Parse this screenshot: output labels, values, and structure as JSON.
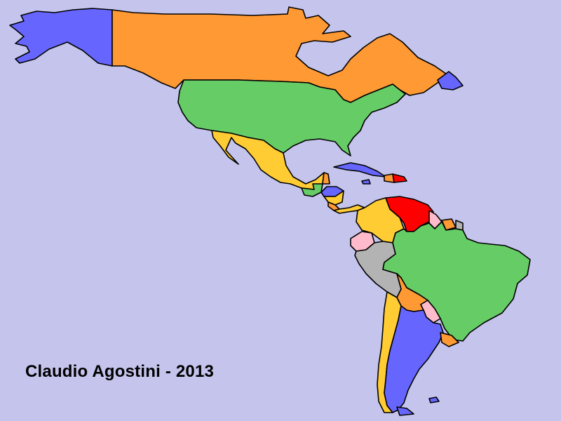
{
  "credit_text": "Claudio Agostini - 2013",
  "colors": {
    "ocean": "#c4c4ec",
    "blue": "#6666ff",
    "orange": "#ff9933",
    "green": "#66cc66",
    "yellow": "#ffcc33",
    "red": "#ff0000",
    "pink": "#ffbbcc",
    "gray": "#b3b3b3",
    "border": "#000000"
  },
  "regions": [
    {
      "name": "alaska",
      "color": "blue"
    },
    {
      "name": "canada",
      "color": "orange"
    },
    {
      "name": "greenland-fragment",
      "color": "blue"
    },
    {
      "name": "usa",
      "color": "green"
    },
    {
      "name": "mexico",
      "color": "yellow"
    },
    {
      "name": "guatemala",
      "color": "green"
    },
    {
      "name": "belize",
      "color": "orange"
    },
    {
      "name": "honduras",
      "color": "blue"
    },
    {
      "name": "nicaragua",
      "color": "yellow"
    },
    {
      "name": "costa-rica",
      "color": "orange"
    },
    {
      "name": "panama",
      "color": "yellow"
    },
    {
      "name": "cuba",
      "color": "blue"
    },
    {
      "name": "haiti",
      "color": "orange"
    },
    {
      "name": "dominican-republic",
      "color": "red"
    },
    {
      "name": "jamaica",
      "color": "blue"
    },
    {
      "name": "colombia",
      "color": "yellow"
    },
    {
      "name": "venezuela",
      "color": "red"
    },
    {
      "name": "guyana",
      "color": "pink"
    },
    {
      "name": "suriname",
      "color": "orange"
    },
    {
      "name": "french-guiana",
      "color": "gray"
    },
    {
      "name": "ecuador",
      "color": "pink"
    },
    {
      "name": "peru",
      "color": "gray"
    },
    {
      "name": "brazil",
      "color": "green"
    },
    {
      "name": "bolivia",
      "color": "orange"
    },
    {
      "name": "paraguay",
      "color": "pink"
    },
    {
      "name": "chile",
      "color": "yellow"
    },
    {
      "name": "argentina",
      "color": "blue"
    },
    {
      "name": "uruguay",
      "color": "orange"
    },
    {
      "name": "falklands",
      "color": "blue"
    }
  ]
}
